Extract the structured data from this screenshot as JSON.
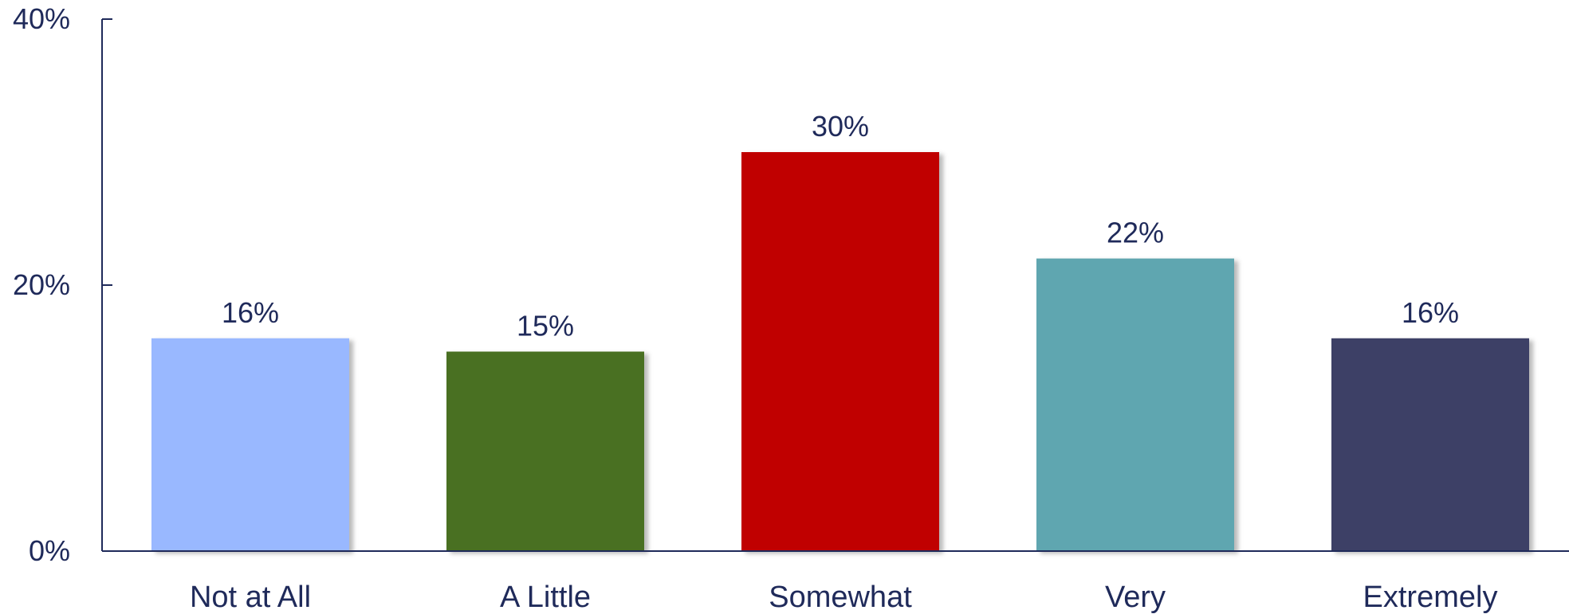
{
  "chart_data": {
    "type": "bar",
    "categories": [
      "Not at All",
      "A Little",
      "Somewhat",
      "Very",
      "Extremely"
    ],
    "values": [
      16,
      15,
      30,
      22,
      16
    ],
    "data_labels": [
      "16%",
      "15%",
      "30%",
      "22%",
      "16%"
    ],
    "colors": [
      "#99b8ff",
      "#4a7020",
      "#c00000",
      "#5fa6b0",
      "#3e3f66"
    ],
    "ylim": [
      0,
      40
    ],
    "yticks": [
      0,
      20,
      40
    ],
    "ytick_labels": [
      "0%",
      "20%",
      "40%"
    ],
    "grid": false,
    "axis_color": "#1f2a5a",
    "text_color": "#1f2a5a"
  }
}
